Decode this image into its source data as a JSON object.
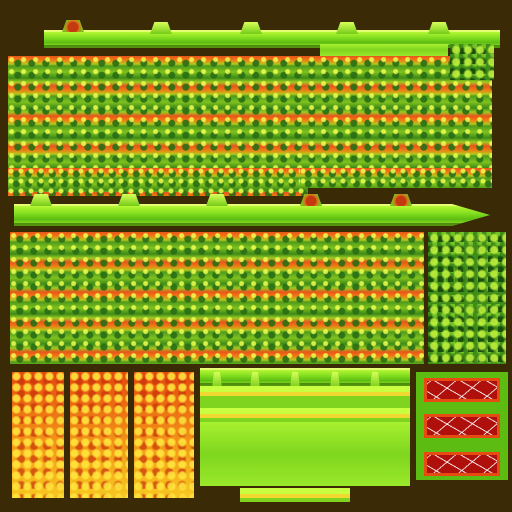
{
  "texture_atlas": {
    "palette": {
      "lime": "#9ef02a",
      "leaf_green": "#4f9a1c",
      "orange": "#f07a14",
      "red_orange": "#e8541a",
      "lava_red": "#b0100c",
      "yellow": "#f7c820"
    },
    "regions": [
      "top-wall-strip",
      "foliage-upper",
      "hedge-corner",
      "mid-wall-strip",
      "foliage-lower",
      "hedge-right",
      "autumn-tiles",
      "lime-fence-panel",
      "lava-bricks"
    ]
  }
}
